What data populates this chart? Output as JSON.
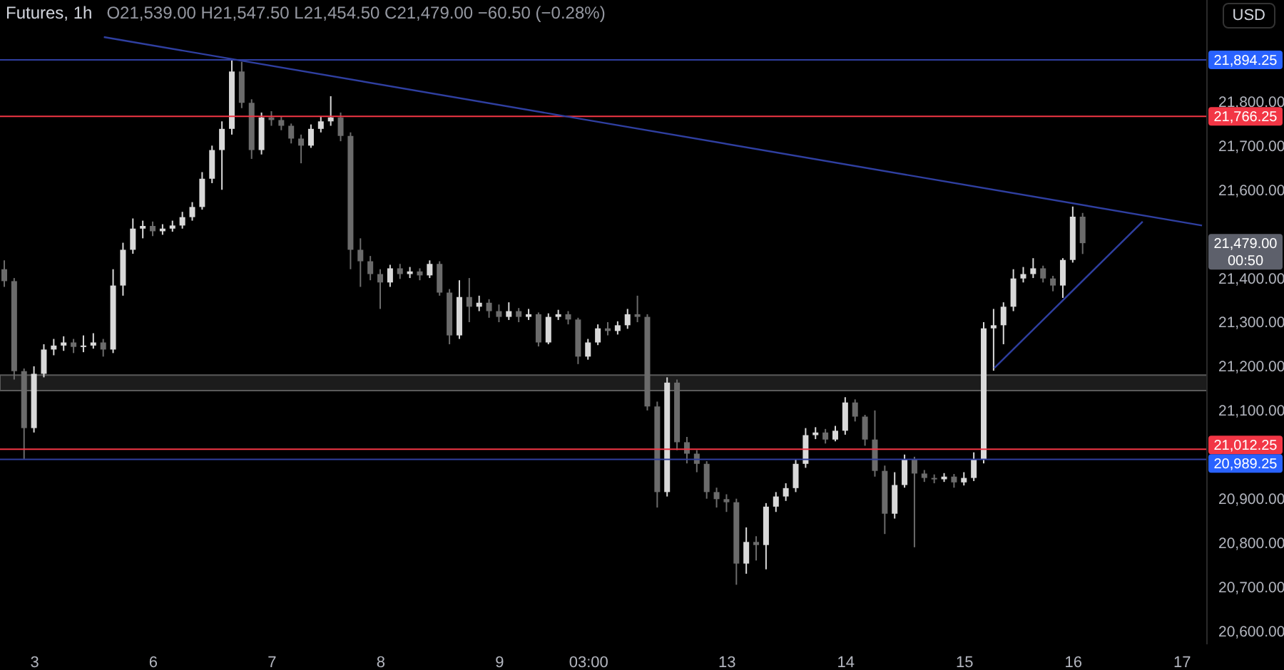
{
  "chart_data": {
    "type": "candlestick",
    "title": "Futures, 1h",
    "annotations": [
      "O21,539.00 H21,547.50 L21,454.50 C21,479.00 −60.50 (−0.28%)",
      "USD",
      "21,479.00\n00:50"
    ],
    "categories": [
      null,
      null,
      null,
      "3",
      null,
      null,
      null,
      null,
      null,
      null,
      null,
      null,
      null,
      null,
      null,
      "6",
      null,
      null,
      null,
      null,
      null,
      null,
      null,
      null,
      null,
      null,
      null,
      "7",
      null,
      null,
      null,
      null,
      null,
      null,
      null,
      null,
      null,
      null,
      "8",
      null,
      null,
      null,
      null,
      null,
      null,
      null,
      null,
      null,
      null,
      null,
      "9",
      null,
      null,
      null,
      null,
      null,
      null,
      null,
      null,
      "03:00",
      null,
      null,
      null,
      null,
      null,
      null,
      null,
      null,
      null,
      null,
      null,
      null,
      null,
      "13",
      null,
      null,
      null,
      null,
      null,
      null,
      null,
      null,
      null,
      null,
      null,
      "14",
      null,
      null,
      null,
      null,
      null,
      null,
      null,
      null,
      null,
      null,
      null,
      "15",
      null,
      null,
      null,
      null,
      null,
      null,
      null,
      null,
      null,
      null,
      "16",
      null,
      null,
      null,
      null,
      null,
      null,
      null,
      null,
      null,
      null,
      "17",
      null,
      null
    ],
    "ohlc": [
      [
        21420,
        21440,
        21380,
        21393
      ],
      [
        21393,
        21400,
        21170,
        21189
      ],
      [
        21189,
        21195,
        20990,
        21060
      ],
      [
        21060,
        21200,
        21050,
        21183
      ],
      [
        21183,
        21250,
        21175,
        21238
      ],
      [
        21238,
        21262,
        21225,
        21247
      ],
      [
        21247,
        21268,
        21235,
        21254
      ],
      [
        21254,
        21262,
        21230,
        21244
      ],
      [
        21244,
        21270,
        21232,
        21247
      ],
      [
        21247,
        21275,
        21240,
        21254
      ],
      [
        21254,
        21262,
        21222,
        21238
      ],
      [
        21238,
        21420,
        21230,
        21383
      ],
      [
        21383,
        21480,
        21360,
        21464
      ],
      [
        21464,
        21535,
        21455,
        21512
      ],
      [
        21512,
        21530,
        21490,
        21518
      ],
      [
        21518,
        21528,
        21495,
        21506
      ],
      [
        21506,
        21522,
        21498,
        21512
      ],
      [
        21512,
        21530,
        21505,
        21519
      ],
      [
        21519,
        21550,
        21512,
        21538
      ],
      [
        21538,
        21572,
        21530,
        21561
      ],
      [
        21561,
        21640,
        21555,
        21625
      ],
      [
        21625,
        21700,
        21615,
        21690
      ],
      [
        21690,
        21755,
        21600,
        21738
      ],
      [
        21738,
        21893,
        21725,
        21868
      ],
      [
        21868,
        21890,
        21785,
        21797
      ],
      [
        21797,
        21805,
        21670,
        21690
      ],
      [
        21690,
        21775,
        21680,
        21764
      ],
      [
        21764,
        21778,
        21745,
        21758
      ],
      [
        21758,
        21765,
        21735,
        21745
      ],
      [
        21745,
        21750,
        21705,
        21716
      ],
      [
        21716,
        21725,
        21660,
        21700
      ],
      [
        21700,
        21748,
        21695,
        21738
      ],
      [
        21738,
        21765,
        21730,
        21755
      ],
      [
        21755,
        21812,
        21745,
        21764
      ],
      [
        21764,
        21775,
        21710,
        21722
      ],
      [
        21722,
        21730,
        21420,
        21464
      ],
      [
        21464,
        21490,
        21380,
        21438
      ],
      [
        21438,
        21450,
        21395,
        21409
      ],
      [
        21409,
        21420,
        21330,
        21390
      ],
      [
        21390,
        21430,
        21380,
        21422
      ],
      [
        21422,
        21432,
        21398,
        21409
      ],
      [
        21409,
        21425,
        21400,
        21415
      ],
      [
        21415,
        21422,
        21395,
        21406
      ],
      [
        21406,
        21440,
        21400,
        21432
      ],
      [
        21432,
        21438,
        21360,
        21367
      ],
      [
        21367,
        21375,
        21250,
        21270
      ],
      [
        21270,
        21395,
        21262,
        21357
      ],
      [
        21357,
        21400,
        21300,
        21335
      ],
      [
        21335,
        21360,
        21325,
        21344
      ],
      [
        21344,
        21352,
        21310,
        21325
      ],
      [
        21325,
        21340,
        21300,
        21312
      ],
      [
        21312,
        21345,
        21305,
        21325
      ],
      [
        21325,
        21332,
        21300,
        21312
      ],
      [
        21312,
        21330,
        21305,
        21318
      ],
      [
        21318,
        21322,
        21245,
        21254
      ],
      [
        21254,
        21320,
        21250,
        21312
      ],
      [
        21312,
        21328,
        21305,
        21318
      ],
      [
        21318,
        21325,
        21295,
        21306
      ],
      [
        21306,
        21310,
        21205,
        21222
      ],
      [
        21222,
        21262,
        21215,
        21254
      ],
      [
        21254,
        21295,
        21248,
        21286
      ],
      [
        21286,
        21300,
        21270,
        21280
      ],
      [
        21280,
        21302,
        21272,
        21293
      ],
      [
        21293,
        21330,
        21285,
        21318
      ],
      [
        21318,
        21360,
        21300,
        21312
      ],
      [
        21312,
        21318,
        21100,
        21109
      ],
      [
        21109,
        21120,
        20880,
        20915
      ],
      [
        20915,
        21175,
        20905,
        21163
      ],
      [
        21163,
        21170,
        21010,
        21028
      ],
      [
        21028,
        21040,
        20980,
        21002
      ],
      [
        21002,
        21010,
        20960,
        20979
      ],
      [
        20979,
        20985,
        20900,
        20915
      ],
      [
        20915,
        20925,
        20880,
        20899
      ],
      [
        20899,
        20910,
        20870,
        20892
      ],
      [
        20892,
        20900,
        20705,
        20753
      ],
      [
        20753,
        20835,
        20730,
        20802
      ],
      [
        20802,
        20815,
        20760,
        20795
      ],
      [
        20795,
        20890,
        20740,
        20882
      ],
      [
        20882,
        20915,
        20870,
        20905
      ],
      [
        20905,
        20935,
        20895,
        20924
      ],
      [
        20924,
        20990,
        20915,
        20979
      ],
      [
        20979,
        21060,
        20970,
        21044
      ],
      [
        21044,
        21062,
        21035,
        21050
      ],
      [
        21050,
        21058,
        21025,
        21034
      ],
      [
        21034,
        21065,
        21030,
        21054
      ],
      [
        21054,
        21130,
        21045,
        21118
      ],
      [
        21118,
        21125,
        21075,
        21086
      ],
      [
        21086,
        21090,
        21020,
        21034
      ],
      [
        21034,
        21100,
        20950,
        20963
      ],
      [
        20963,
        20975,
        20820,
        20866
      ],
      [
        20866,
        20960,
        20855,
        20931
      ],
      [
        20931,
        21000,
        20925,
        20989
      ],
      [
        20989,
        20995,
        20790,
        20957
      ],
      [
        20957,
        20965,
        20938,
        20947
      ],
      [
        20947,
        20955,
        20935,
        20944
      ],
      [
        20944,
        20958,
        20938,
        20950
      ],
      [
        20950,
        20956,
        20925,
        20937
      ],
      [
        20937,
        20960,
        20930,
        20947
      ],
      [
        20947,
        21005,
        20940,
        20989
      ],
      [
        20989,
        21300,
        20980,
        21286
      ],
      [
        21286,
        21330,
        21190,
        21293
      ],
      [
        21293,
        21345,
        21250,
        21335
      ],
      [
        21335,
        21420,
        21325,
        21399
      ],
      [
        21399,
        21425,
        21390,
        21409
      ],
      [
        21409,
        21445,
        21400,
        21422
      ],
      [
        21422,
        21428,
        21390,
        21399
      ],
      [
        21399,
        21405,
        21370,
        21383
      ],
      [
        21383,
        21445,
        21355,
        21441
      ],
      [
        21441,
        21562,
        21435,
        21539
      ],
      [
        21539,
        21547.5,
        21454.5,
        21479
      ],
      null,
      null,
      null,
      null,
      null,
      null,
      null,
      null,
      null,
      null,
      null,
      null
    ],
    "colors": [
      "#6b6b6b",
      "#6b6b6b",
      "#6b6b6b",
      "#d9d9d9",
      "#d9d9d9",
      "#d9d9d9",
      "#d9d9d9",
      "#6b6b6b",
      "#d9d9d9",
      "#d9d9d9",
      "#6b6b6b",
      "#d9d9d9",
      "#d9d9d9",
      "#d9d9d9",
      "#d9d9d9",
      "#6b6b6b",
      "#d9d9d9",
      "#d9d9d9",
      "#d9d9d9",
      "#d9d9d9",
      "#d9d9d9",
      "#d9d9d9",
      "#d9d9d9",
      "#d9d9d9",
      "#6b6b6b",
      "#6b6b6b",
      "#d9d9d9",
      "#6b6b6b",
      "#6b6b6b",
      "#6b6b6b",
      "#6b6b6b",
      "#d9d9d9",
      "#d9d9d9",
      "#d9d9d9",
      "#6b6b6b",
      "#6b6b6b",
      "#6b6b6b",
      "#6b6b6b",
      "#6b6b6b",
      "#d9d9d9",
      "#6b6b6b",
      "#d9d9d9",
      "#6b6b6b",
      "#d9d9d9",
      "#6b6b6b",
      "#6b6b6b",
      "#d9d9d9",
      "#6b6b6b",
      "#d9d9d9",
      "#6b6b6b",
      "#6b6b6b",
      "#d9d9d9",
      "#6b6b6b",
      "#d9d9d9",
      "#6b6b6b",
      "#d9d9d9",
      "#d9d9d9",
      "#6b6b6b",
      "#6b6b6b",
      "#d9d9d9",
      "#d9d9d9",
      "#6b6b6b",
      "#d9d9d9",
      "#d9d9d9",
      "#6b6b6b",
      "#6b6b6b",
      "#6b6b6b",
      "#d9d9d9",
      "#6b6b6b",
      "#6b6b6b",
      "#6b6b6b",
      "#6b6b6b",
      "#6b6b6b",
      "#6b6b6b",
      "#6b6b6b",
      "#d9d9d9",
      "#6b6b6b",
      "#d9d9d9",
      "#d9d9d9",
      "#d9d9d9",
      "#d9d9d9",
      "#d9d9d9",
      "#d9d9d9",
      "#6b6b6b",
      "#d9d9d9",
      "#d9d9d9",
      "#6b6b6b",
      "#6b6b6b",
      "#6b6b6b",
      "#6b6b6b",
      "#d9d9d9",
      "#d9d9d9",
      "#6b6b6b",
      "#6b6b6b",
      "#6b6b6b",
      "#d9d9d9",
      "#6b6b6b",
      "#d9d9d9",
      "#d9d9d9",
      "#d9d9d9",
      "#d9d9d9",
      "#d9d9d9",
      "#d9d9d9",
      "#d9d9d9",
      "#d9d9d9",
      "#6b6b6b",
      "#6b6b6b",
      "#d9d9d9",
      "#d9d9d9",
      "#6b6b6b",
      null,
      null,
      null,
      null,
      null,
      null,
      null,
      null,
      null,
      null,
      null,
      null
    ],
    "series": [
      {
        "type": "line",
        "color": "#2f3fa0",
        "values": [
          null,
          null,
          null,
          null,
          null,
          null,
          null,
          null,
          null,
          null,
          21946,
          null,
          null,
          null,
          null,
          null,
          null,
          null,
          null,
          null,
          null,
          null,
          null,
          null,
          null,
          null,
          null,
          null,
          null,
          null,
          null,
          null,
          null,
          null,
          null,
          null,
          null,
          null,
          null,
          null,
          null,
          null,
          null,
          null,
          null,
          null,
          null,
          null,
          null,
          null,
          null,
          null,
          null,
          null,
          null,
          null,
          null,
          null,
          null,
          null,
          null,
          null,
          null,
          null,
          null,
          null,
          null,
          null,
          null,
          null,
          null,
          null,
          null,
          null,
          null,
          null,
          null,
          null,
          null,
          null,
          null,
          null,
          null,
          null,
          null,
          null,
          null,
          null,
          null,
          null,
          null,
          null,
          null,
          null,
          null,
          null,
          null,
          null,
          null,
          null,
          null,
          null,
          null,
          null,
          null,
          null,
          null,
          null,
          null,
          null,
          null,
          null,
          null,
          null,
          null,
          null,
          null,
          null,
          null,
          null,
          null,
          21519
        ]
      },
      {
        "type": "line",
        "color": "#2f3fa0",
        "values": [
          null,
          null,
          null,
          null,
          null,
          null,
          null,
          null,
          null,
          null,
          null,
          null,
          null,
          null,
          null,
          null,
          null,
          null,
          null,
          null,
          null,
          null,
          null,
          null,
          null,
          null,
          null,
          null,
          null,
          null,
          null,
          null,
          null,
          null,
          null,
          null,
          null,
          null,
          null,
          null,
          null,
          null,
          null,
          null,
          null,
          null,
          null,
          null,
          null,
          null,
          null,
          null,
          null,
          null,
          null,
          null,
          null,
          null,
          null,
          null,
          null,
          null,
          null,
          null,
          null,
          null,
          null,
          null,
          null,
          null,
          null,
          null,
          null,
          null,
          null,
          null,
          null,
          null,
          null,
          null,
          null,
          null,
          null,
          null,
          null,
          null,
          null,
          null,
          null,
          null,
          null,
          null,
          null,
          null,
          null,
          null,
          null,
          null,
          null,
          null,
          21196,
          null,
          null,
          null,
          null,
          null,
          null,
          null,
          null,
          null,
          null,
          null,
          null,
          null,
          null,
          21528,
          null,
          null,
          null,
          null,
          null,
          null
        ]
      }
    ],
    "ylim": [
      20570,
      22030
    ],
    "yticks": [
      {
        "value": 20600,
        "label": "20,600.00"
      },
      {
        "value": 20700,
        "label": "20,700.00"
      },
      {
        "value": 20800,
        "label": "20,800.00"
      },
      {
        "value": 20900,
        "label": "20,900.00"
      },
      {
        "value": 21100,
        "label": "21,100.00"
      },
      {
        "value": 21200,
        "label": "21,200.00"
      },
      {
        "value": 21300,
        "label": "21,300.00"
      },
      {
        "value": 21400,
        "label": "21,400.00"
      },
      {
        "value": 21600,
        "label": "21,600.00"
      },
      {
        "value": 21700,
        "label": "21,700.00"
      },
      {
        "value": 21800,
        "label": "21,800.00"
      }
    ],
    "ref_lines": [
      {
        "axis": "y",
        "value": 21894.25,
        "label": "21,894.25",
        "color": "#2f3fa0"
      },
      {
        "axis": "y",
        "value": 21766.25,
        "label": "21,766.25",
        "color": "#f23645"
      },
      {
        "axis": "y",
        "value": 21012.25,
        "label": "21,012.25",
        "color": "#f23645"
      },
      {
        "axis": "y",
        "value": 20989.25,
        "label": "20,989.25",
        "color": "#2f3fa0"
      }
    ],
    "bands": [
      {
        "axis": "y",
        "from": 21145,
        "to": 21180,
        "color": "#1c1c1c"
      }
    ]
  }
}
